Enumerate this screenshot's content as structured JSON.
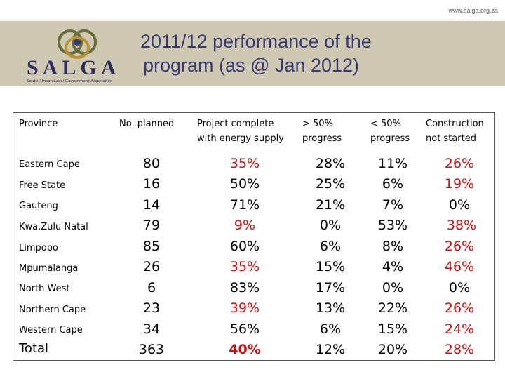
{
  "site_url": "www.salga.org.za",
  "logo": {
    "wordmark": "SALGA",
    "tagline": "South African Local Government Association"
  },
  "title_line1": "2011/12 performance of the",
  "title_line2": "program (as @ Jan 2012)",
  "headers": {
    "province": "Province",
    "planned": "No. planned",
    "complete_l1": "Project complete",
    "complete_l2": "with energy supply",
    "gt50_l1": "> 50%",
    "gt50_l2": "progress",
    "lt50_l1": "< 50%",
    "lt50_l2": "progress",
    "cns_l1": "Construction",
    "cns_l2": "not started"
  },
  "rows": [
    {
      "province": "Eastern Cape",
      "planned": "80",
      "complete": "35%",
      "gt50": "28%",
      "lt50": "11%",
      "not_started": "26%"
    },
    {
      "province": "Free State",
      "planned": "16",
      "complete": "50%",
      "gt50": "25%",
      "lt50": "6%",
      "not_started": "19%"
    },
    {
      "province": "Gauteng",
      "planned": "14",
      "complete": "71%",
      "gt50": "21%",
      "lt50": "7%",
      "not_started": "0%"
    },
    {
      "province": "Kwa.Zulu Natal",
      "planned": "79",
      "complete": "9%",
      "gt50": "0%",
      "lt50": "53%",
      "not_started": "38%"
    },
    {
      "province": "Limpopo",
      "planned": "85",
      "complete": "60%",
      "gt50": "6%",
      "lt50": "8%",
      "not_started": "26%"
    },
    {
      "province": "Mpumalanga",
      "planned": "26",
      "complete": "35%",
      "gt50": "15%",
      "lt50": "4%",
      "not_started": "46%"
    },
    {
      "province": "North West",
      "planned": "6",
      "complete": "83%",
      "gt50": "17%",
      "lt50": "0%",
      "not_started": "0%"
    },
    {
      "province": "Northern Cape",
      "planned": "23",
      "complete": "39%",
      "gt50": "13%",
      "lt50": "22%",
      "not_started": "26%"
    },
    {
      "province": "Western Cape",
      "planned": "34",
      "complete": "56%",
      "gt50": "6%",
      "lt50": "15%",
      "not_started": "24%"
    }
  ],
  "total": {
    "label": "Total",
    "planned": "363",
    "complete": "40%",
    "gt50": "12%",
    "lt50": "20%",
    "not_started": "28%"
  },
  "colors": {
    "highlight_red": "#cc1111",
    "header_band": "#cfc9b4",
    "title_blue": "#3a3a72"
  }
}
